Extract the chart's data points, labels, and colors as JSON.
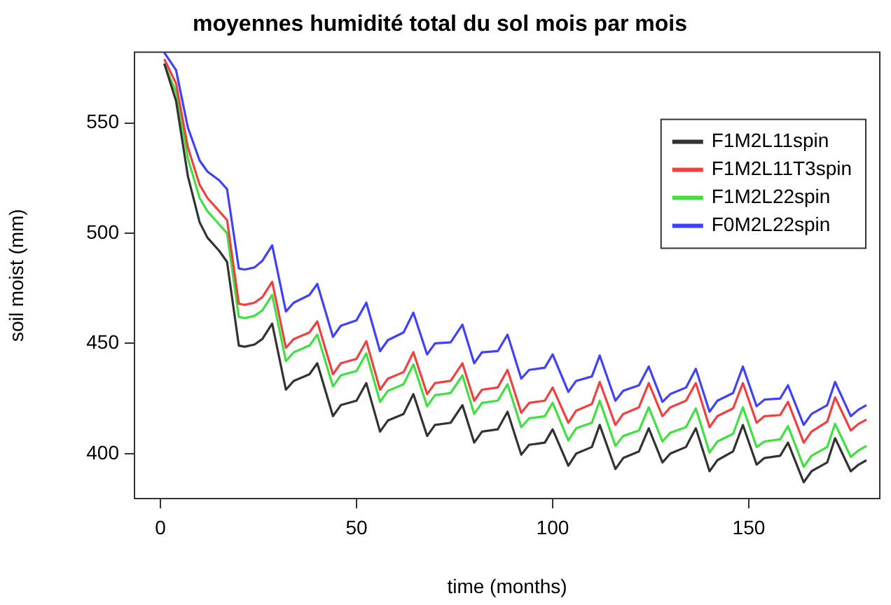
{
  "chart_data": {
    "type": "line",
    "title": "moyennes humidité total du sol mois par mois",
    "xlabel": "time (months)",
    "ylabel": "soil moist (mm)",
    "x": [
      1,
      4,
      7,
      10,
      12,
      15,
      17,
      20,
      21.5,
      24,
      26,
      28.5,
      32,
      34,
      38,
      40,
      44,
      46,
      50,
      52.5,
      56,
      58,
      62,
      64.5,
      68,
      70,
      74,
      77,
      80,
      82,
      86,
      88.5,
      92,
      94,
      98,
      100,
      104,
      106,
      110,
      112,
      116,
      118,
      122,
      124.5,
      128,
      130,
      134,
      136.5,
      140,
      142,
      146,
      148.5,
      152,
      154,
      158,
      160,
      164,
      166,
      170,
      172,
      176,
      178,
      180
    ],
    "series": [
      {
        "name": "F1M2L11spin",
        "color": "#333333",
        "values": [
          577,
          560,
          526,
          505,
          498,
          492,
          487,
          449,
          448.5,
          449.5,
          452,
          459,
          429,
          433,
          436,
          441,
          417,
          422,
          424,
          432,
          410,
          415,
          418,
          427,
          408,
          413,
          414,
          422,
          405,
          410,
          411,
          419,
          399.5,
          404,
          405,
          411,
          394.5,
          400,
          403,
          413,
          393,
          398,
          401,
          411.5,
          396,
          400,
          403,
          411.5,
          392,
          397,
          401,
          413,
          395,
          398,
          399,
          405,
          387,
          392,
          396,
          407,
          392,
          395,
          397
        ]
      },
      {
        "name": "F1M2L11T3spin",
        "color": "#f04040",
        "values": [
          579,
          568,
          539,
          522,
          516,
          510,
          506,
          468,
          467.5,
          468.5,
          471,
          478,
          448,
          452,
          455,
          460,
          436,
          441,
          443,
          451,
          429,
          434,
          437,
          446,
          427,
          432,
          433,
          441,
          424,
          429,
          430,
          438,
          418.5,
          423,
          424,
          430,
          414,
          419.5,
          422.5,
          432.5,
          413,
          418,
          421,
          432,
          417,
          421,
          424,
          432,
          412,
          417,
          420.5,
          432,
          414,
          417,
          417.5,
          423.5,
          405,
          410,
          414.5,
          425.5,
          410.5,
          413.5,
          415.5
        ]
      },
      {
        "name": "F1M2L22spin",
        "color": "#40e040",
        "values": [
          577,
          564,
          534,
          516,
          510,
          504,
          500,
          462,
          461.5,
          462.5,
          465,
          472,
          442,
          446,
          449,
          454,
          430.5,
          435.5,
          437.5,
          445.5,
          423.5,
          428.5,
          431.5,
          440.5,
          421.5,
          426.5,
          427.5,
          435.5,
          418,
          423,
          424,
          431.5,
          412,
          416,
          417,
          423,
          406,
          411.5,
          414,
          424,
          403.5,
          408,
          410.5,
          421,
          405.5,
          409.5,
          412,
          420.5,
          400.5,
          405.5,
          409,
          421,
          403,
          405.5,
          406.5,
          412.5,
          394,
          399,
          403,
          413.5,
          398.5,
          401.5,
          403.5
        ]
      },
      {
        "name": "F0M2L22spin",
        "color": "#4040ff",
        "values": [
          582,
          574,
          548,
          533,
          528,
          524,
          520,
          484,
          483.5,
          484.5,
          487.5,
          494.5,
          464.5,
          468.5,
          472,
          477,
          453,
          458,
          460.5,
          468.5,
          446.5,
          451.5,
          455,
          464,
          445,
          450,
          450.5,
          458.5,
          441,
          446,
          446.5,
          454,
          434,
          438,
          439,
          445,
          428,
          433,
          435,
          444.5,
          424,
          428.5,
          431,
          439.5,
          423.5,
          427,
          430,
          438.5,
          419,
          424,
          427.5,
          439.5,
          421.5,
          424.5,
          425,
          431,
          413,
          418,
          422,
          432.5,
          417,
          420,
          422
        ]
      }
    ],
    "xlim": [
      -6.6,
      183.4
    ],
    "xticks": [
      0,
      50,
      100,
      150
    ],
    "ylim": [
      379.6,
      582.2
    ],
    "yticks": [
      400,
      450,
      500,
      550
    ],
    "grid": false,
    "legend": "top right",
    "marker": "none",
    "line_style": "solid"
  }
}
